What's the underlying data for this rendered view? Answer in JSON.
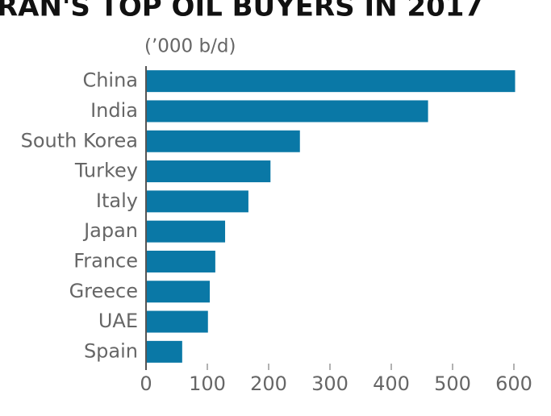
{
  "chart_data": {
    "type": "bar",
    "orientation": "horizontal",
    "title": "RAN'S TOP OIL BUYERS IN 2017",
    "subtitle": "(’000 b/d)",
    "categories": [
      "China",
      "India",
      "South Korea",
      "Turkey",
      "Italy",
      "Japan",
      "France",
      "Greece",
      "UAE",
      "Spain"
    ],
    "values": [
      602,
      460,
      251,
      203,
      167,
      129,
      113,
      104,
      101,
      59
    ],
    "color": "#0a78a6",
    "xlim": [
      0,
      650
    ],
    "xticks": [
      0,
      100,
      200,
      300,
      400,
      500,
      600
    ],
    "grid": false
  }
}
